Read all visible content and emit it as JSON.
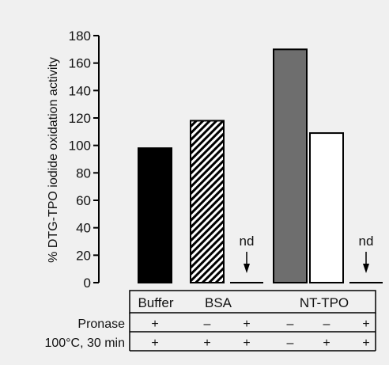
{
  "chart_data": {
    "type": "bar",
    "ylabel": "% DTG-TPO iodide oxidation activity",
    "ylim": [
      0,
      180
    ],
    "yticks": [
      0,
      20,
      40,
      60,
      80,
      100,
      120,
      140,
      160,
      180
    ],
    "groups": [
      {
        "label": "Buffer",
        "bars": [
          0
        ]
      },
      {
        "label": "BSA",
        "bars": [
          1,
          2
        ]
      },
      {
        "label": "NT-TPO",
        "bars": [
          3,
          4,
          5
        ]
      }
    ],
    "bars": [
      {
        "value": 98,
        "fill": "solid-black",
        "annotation": ""
      },
      {
        "value": 118,
        "fill": "hatched",
        "annotation": ""
      },
      {
        "value": 0,
        "fill": "none",
        "annotation": "nd"
      },
      {
        "value": 170,
        "fill": "solid-gray",
        "annotation": ""
      },
      {
        "value": 109,
        "fill": "open-white",
        "annotation": ""
      },
      {
        "value": 0,
        "fill": "none",
        "annotation": "nd"
      }
    ],
    "conditions": [
      {
        "label": "Pronase",
        "values": [
          "+",
          "–",
          "+",
          "–",
          "–",
          "+"
        ]
      },
      {
        "label": "100°C, 30 min",
        "values": [
          "+",
          "+",
          "+",
          "–",
          "+",
          "+"
        ]
      }
    ],
    "colors": {
      "black": "#000000",
      "gray": "#6e6e6e",
      "background": "#f0f0f0"
    }
  }
}
